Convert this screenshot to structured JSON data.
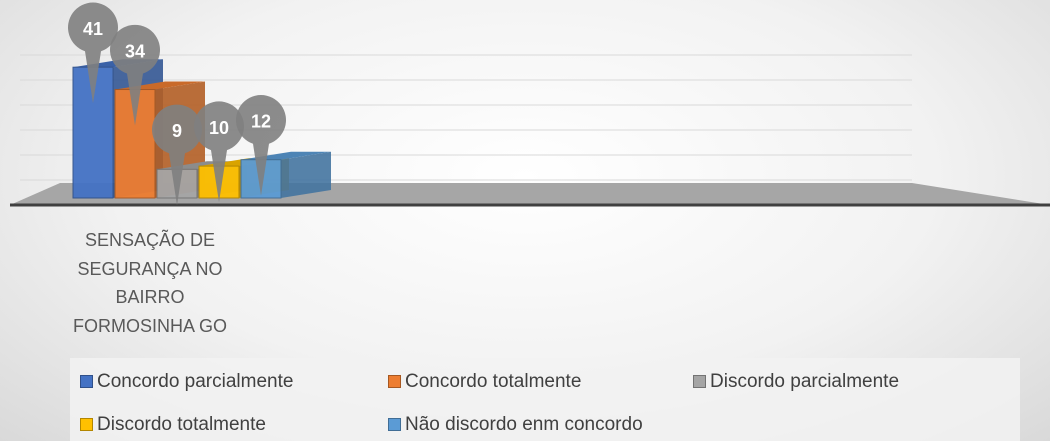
{
  "chart_data": {
    "type": "bar3d",
    "categories": [
      "SENSAÇÃO DE SEGURANÇA NO BAIRRO FORMOSINHA GO"
    ],
    "series": [
      {
        "name": "Concordo parcialmente",
        "color": "#4472c4",
        "values": [
          41
        ]
      },
      {
        "name": "Concordo totalmente",
        "color": "#ed7d31",
        "values": [
          34
        ]
      },
      {
        "name": "Discordo parcialmente",
        "color": "#a5a5a5",
        "values": [
          9
        ]
      },
      {
        "name": "Discordo totalmente",
        "color": "#ffc000",
        "values": [
          10
        ]
      },
      {
        "name": "Não discordo enm concordo",
        "color": "#5b9bd5",
        "values": [
          12
        ]
      }
    ],
    "ylim": [
      0,
      45
    ]
  }
}
